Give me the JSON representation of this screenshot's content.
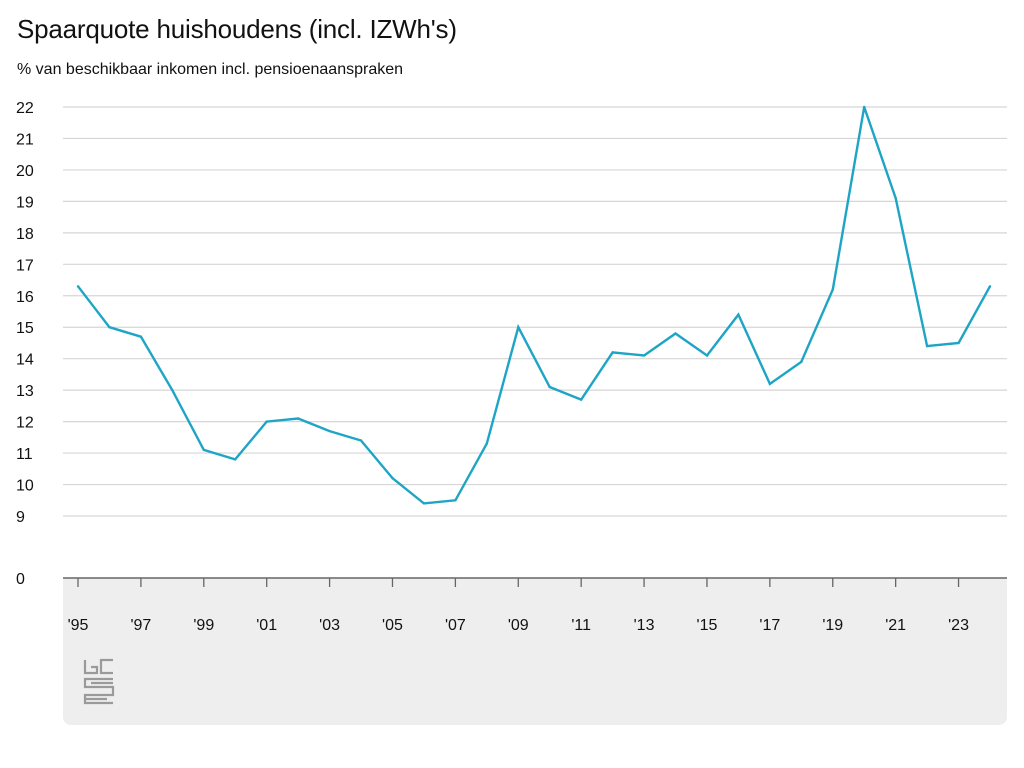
{
  "chart_data": {
    "type": "line",
    "title": "Spaarquote huishoudens (incl. IZWh's)",
    "subtitle": "% van beschikbaar inkomen incl. pensioenaanspraken",
    "xlabel": "",
    "ylabel": "",
    "x": [
      1995,
      1996,
      1997,
      1998,
      1999,
      2000,
      2001,
      2002,
      2003,
      2004,
      2005,
      2006,
      2007,
      2008,
      2009,
      2010,
      2011,
      2012,
      2013,
      2014,
      2015,
      2016,
      2017,
      2018,
      2019,
      2020,
      2021,
      2022,
      2023,
      2024
    ],
    "series": [
      {
        "name": "Spaarquote",
        "color": "#1ea5c6",
        "values": [
          16.3,
          15.0,
          14.7,
          13.0,
          11.1,
          10.8,
          12.0,
          12.1,
          11.7,
          11.4,
          10.2,
          9.4,
          9.5,
          11.3,
          15.0,
          13.1,
          12.7,
          14.2,
          14.1,
          14.8,
          14.1,
          15.4,
          13.2,
          13.9,
          16.2,
          22.0,
          19.1,
          14.4,
          14.5,
          16.3
        ]
      }
    ],
    "y_ticks": [
      "0",
      "9",
      "10",
      "11",
      "12",
      "13",
      "14",
      "15",
      "16",
      "17",
      "18",
      "19",
      "20",
      "21",
      "22"
    ],
    "x_ticks": [
      "'95",
      "'97",
      "'99",
      "'01",
      "'03",
      "'05",
      "'07",
      "'09",
      "'11",
      "'13",
      "'15",
      "'17",
      "'19",
      "'21",
      "'23"
    ],
    "ylim": [
      9,
      22
    ],
    "y_axis_break": true,
    "grid": true
  },
  "source_logo": "cbs",
  "colors": {
    "line": "#1ea5c6",
    "grid": "#d6d6d6",
    "axis": "#666666",
    "panel": "#eeeeee"
  }
}
